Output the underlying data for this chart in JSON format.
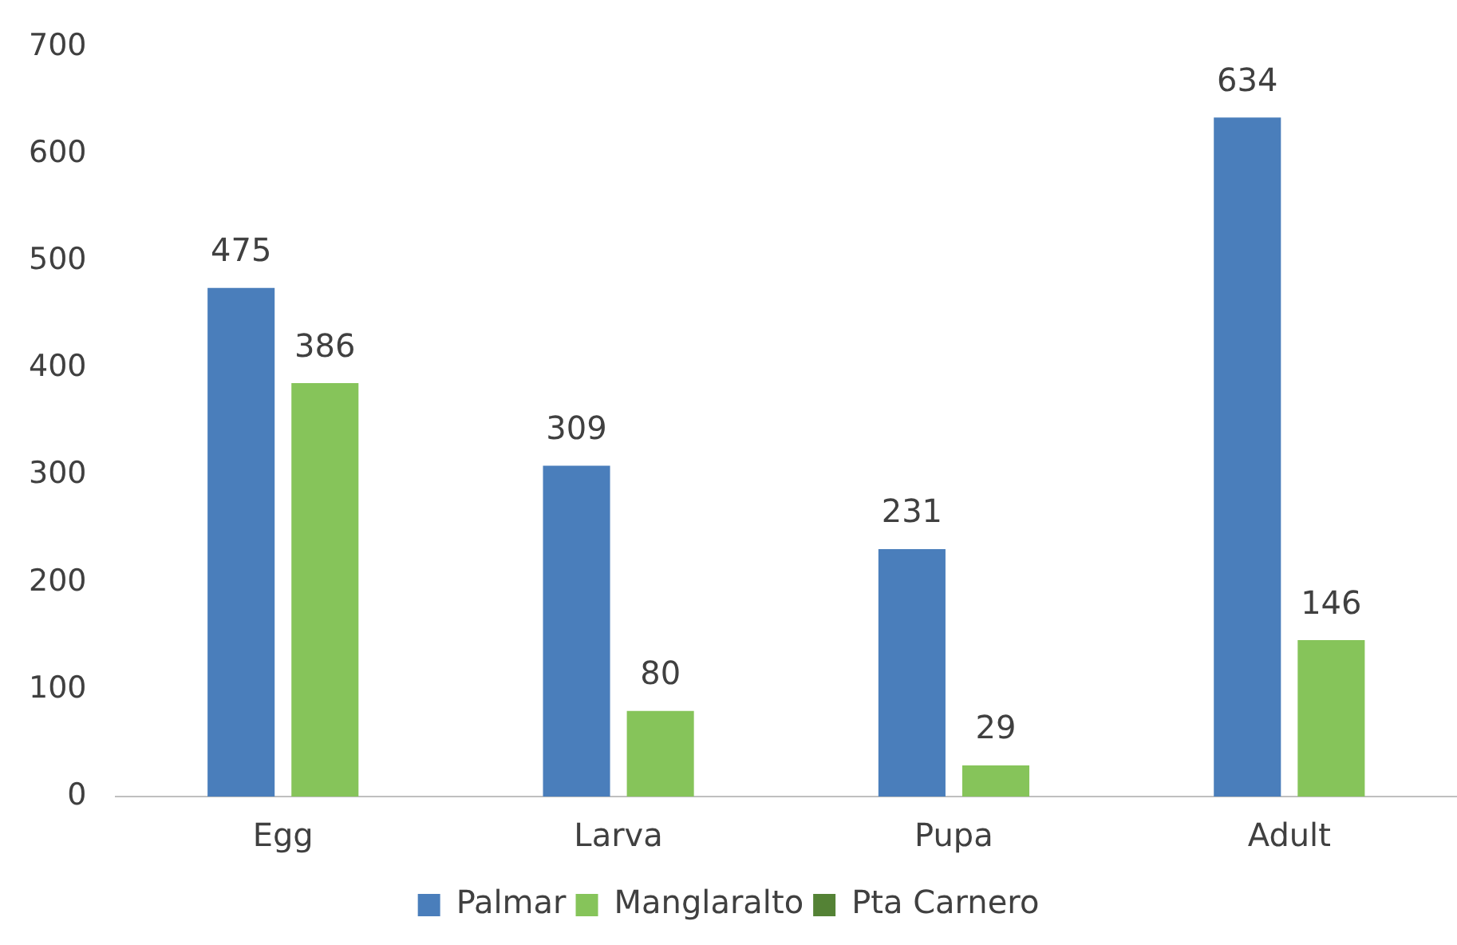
{
  "chart_data": {
    "type": "bar",
    "categories": [
      "Egg",
      "Larva",
      "Pupa",
      "Adult"
    ],
    "series": [
      {
        "name": "Palmar",
        "color": "#4a7ebb",
        "values": [
          475,
          309,
          231,
          634
        ]
      },
      {
        "name": "Manglaralto",
        "color": "#86c45a",
        "values": [
          386,
          80,
          29,
          146
        ]
      },
      {
        "name": "Pta Carnero",
        "color": "#548235",
        "values": [
          null,
          null,
          null,
          null
        ]
      }
    ],
    "ylim": [
      0,
      700
    ],
    "yticks": [
      0,
      100,
      200,
      300,
      400,
      500,
      600,
      700
    ],
    "grid": false,
    "legend": "bottom",
    "data_labels": true
  }
}
